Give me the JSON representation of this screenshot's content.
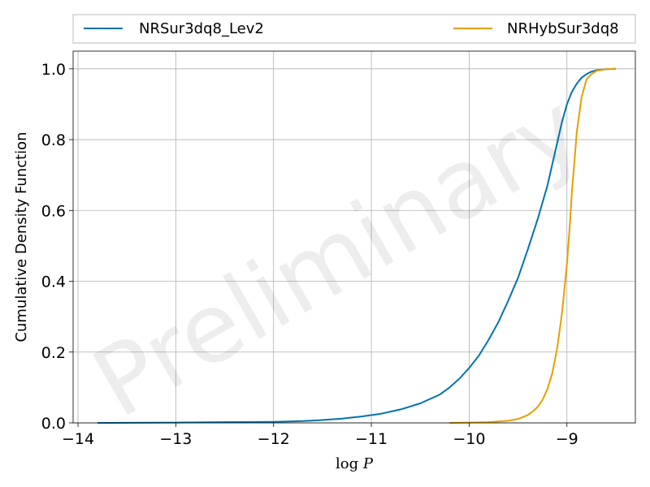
{
  "chart_data": {
    "type": "line",
    "title": "",
    "xlabel": "log P",
    "xlabel_parts": {
      "fn": "log",
      "var": "P"
    },
    "ylabel": "Cumulative Density Function",
    "xlim": [
      -14.05,
      -8.3
    ],
    "ylim": [
      0.0,
      1.05
    ],
    "x_ticks": [
      -14,
      -13,
      -12,
      -11,
      -10,
      -9
    ],
    "x_tick_labels": [
      "−14",
      "−13",
      "−12",
      "−11",
      "−10",
      "−9"
    ],
    "y_ticks": [
      0.0,
      0.2,
      0.4,
      0.6,
      0.8,
      1.0
    ],
    "y_tick_labels": [
      "0.0",
      "0.2",
      "0.4",
      "0.6",
      "0.8",
      "1.0"
    ],
    "grid": true,
    "legend_position": "top, above plot",
    "watermark": "Preliminary",
    "series": [
      {
        "name": "NRSur3dq8_Lev2",
        "color": "#0072b2",
        "x": [
          -13.8,
          -13.0,
          -12.5,
          -12.0,
          -11.7,
          -11.5,
          -11.3,
          -11.1,
          -10.9,
          -10.7,
          -10.5,
          -10.3,
          -10.2,
          -10.1,
          -10.0,
          -9.9,
          -9.8,
          -9.7,
          -9.6,
          -9.5,
          -9.4,
          -9.3,
          -9.2,
          -9.15,
          -9.1,
          -9.05,
          -9.0,
          -8.95,
          -8.9,
          -8.85,
          -8.8,
          -8.75,
          -8.7,
          -8.6,
          -8.5
        ],
        "y": [
          0.0,
          0.001,
          0.002,
          0.003,
          0.005,
          0.008,
          0.012,
          0.018,
          0.026,
          0.038,
          0.055,
          0.08,
          0.1,
          0.125,
          0.155,
          0.19,
          0.235,
          0.285,
          0.345,
          0.41,
          0.49,
          0.575,
          0.67,
          0.73,
          0.79,
          0.85,
          0.9,
          0.935,
          0.958,
          0.975,
          0.985,
          0.992,
          0.996,
          0.999,
          1.0
        ]
      },
      {
        "name": "NRHybSur3dq8",
        "color": "#e69f00",
        "x": [
          -10.2,
          -10.0,
          -9.8,
          -9.6,
          -9.5,
          -9.4,
          -9.35,
          -9.3,
          -9.25,
          -9.2,
          -9.15,
          -9.1,
          -9.05,
          -9.0,
          -8.97,
          -8.95,
          -8.92,
          -8.9,
          -8.87,
          -8.85,
          -8.82,
          -8.8,
          -8.75,
          -8.7,
          -8.6,
          -8.5
        ],
        "y": [
          0.0,
          0.001,
          0.002,
          0.006,
          0.011,
          0.022,
          0.032,
          0.045,
          0.065,
          0.095,
          0.14,
          0.21,
          0.31,
          0.45,
          0.56,
          0.65,
          0.75,
          0.82,
          0.88,
          0.92,
          0.95,
          0.97,
          0.985,
          0.994,
          0.999,
          1.0
        ]
      }
    ]
  }
}
